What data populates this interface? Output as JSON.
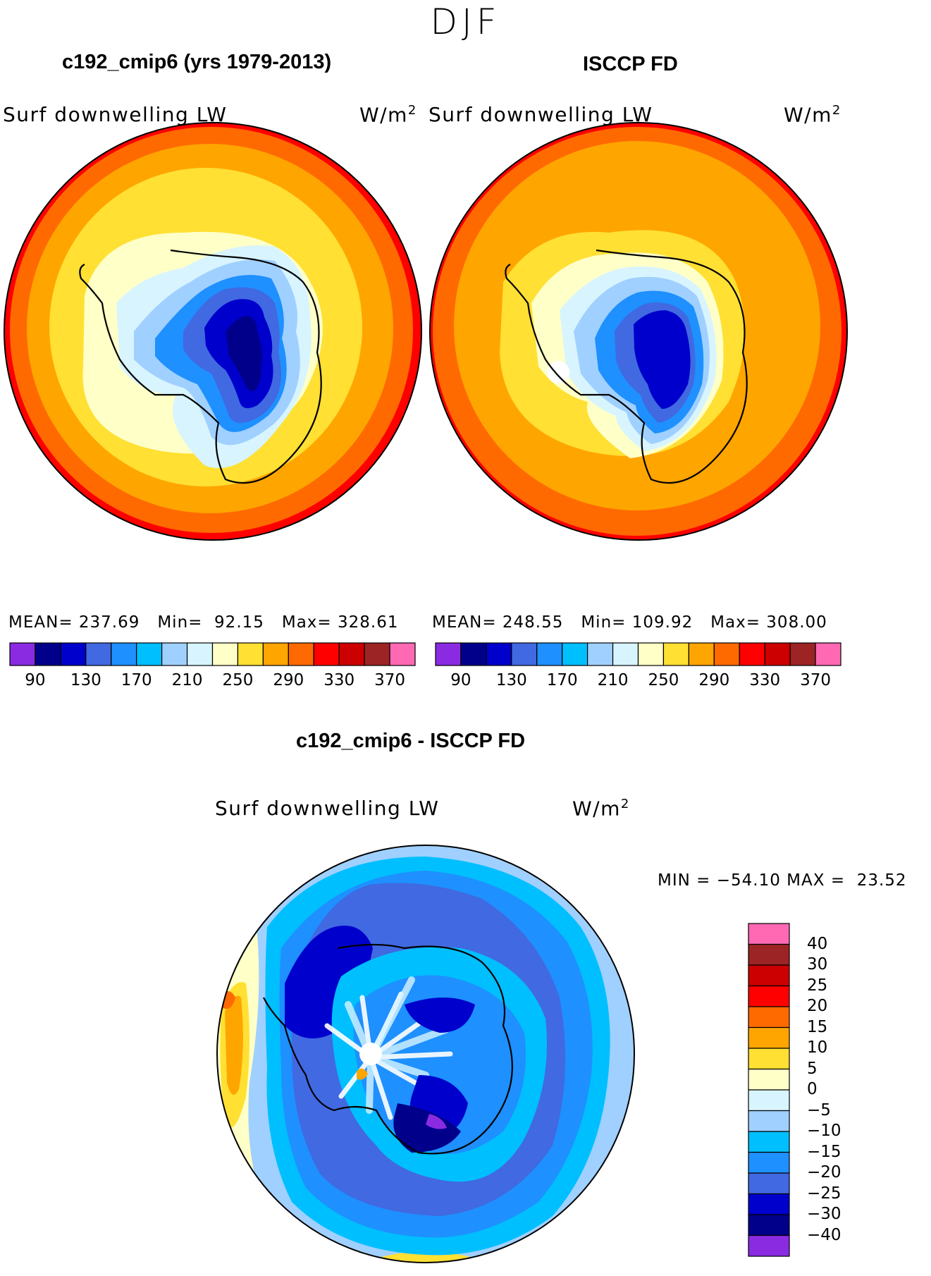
{
  "figure": {
    "season": "DJF"
  },
  "panels": [
    {
      "title": "c192_cmip6 (yrs 1979-2013)",
      "variable": "Surf downwelling LW",
      "units_base": "W/m",
      "units_exp": "2",
      "mean_label": "MEAN=",
      "mean": "237.69",
      "min_label": "Min=",
      "min": "92.15",
      "max_label": "Max=",
      "max": "328.61"
    },
    {
      "title": "ISCCP FD",
      "variable": "Surf downwelling LW",
      "units_base": "W/m",
      "units_exp": "2",
      "mean_label": "MEAN=",
      "mean": "248.55",
      "min_label": "Min=",
      "min": "109.92",
      "max_label": "Max=",
      "max": "308.00"
    }
  ],
  "diff": {
    "title": "c192_cmip6 - ISCCP FD",
    "variable": "Surf downwelling LW",
    "units_base": "W/m",
    "units_exp": "2",
    "min_label": "MIN =",
    "min": "−54.10",
    "max_label": "MAX =",
    "max": "23.52"
  },
  "chart_data": [
    {
      "type": "heatmap",
      "projection": "south polar stereographic",
      "title": "c192_cmip6 (yrs 1979-2013)",
      "variable": "Surf downwelling LW",
      "units": "W/m2",
      "colorbar": {
        "levels": [
          70,
          90,
          110,
          130,
          150,
          170,
          190,
          210,
          230,
          250,
          270,
          290,
          310,
          330,
          350,
          370,
          390
        ],
        "tick_labels": [
          "90",
          "130",
          "170",
          "210",
          "250",
          "290",
          "330",
          "370"
        ],
        "colors": [
          "#8a2be2",
          "#00008b",
          "#0000cd",
          "#4169e1",
          "#1e90ff",
          "#00bfff",
          "#a0d0ff",
          "#d8f4ff",
          "#ffffc8",
          "#ffe033",
          "#ffa500",
          "#ff6a00",
          "#ff0000",
          "#cc0000",
          "#9c2424",
          "#ff69b4"
        ]
      },
      "stats": {
        "mean": 237.69,
        "min": 92.15,
        "max": 328.61
      }
    },
    {
      "type": "heatmap",
      "projection": "south polar stereographic",
      "title": "ISCCP FD",
      "variable": "Surf downwelling LW",
      "units": "W/m2",
      "colorbar": {
        "levels": [
          70,
          90,
          110,
          130,
          150,
          170,
          190,
          210,
          230,
          250,
          270,
          290,
          310,
          330,
          350,
          370,
          390
        ],
        "tick_labels": [
          "90",
          "130",
          "170",
          "210",
          "250",
          "290",
          "330",
          "370"
        ],
        "colors": [
          "#8a2be2",
          "#00008b",
          "#0000cd",
          "#4169e1",
          "#1e90ff",
          "#00bfff",
          "#a0d0ff",
          "#d8f4ff",
          "#ffffc8",
          "#ffe033",
          "#ffa500",
          "#ff6a00",
          "#ff0000",
          "#cc0000",
          "#9c2424",
          "#ff69b4"
        ]
      },
      "stats": {
        "mean": 248.55,
        "min": 109.92,
        "max": 308.0
      }
    },
    {
      "type": "heatmap",
      "projection": "south polar stereographic",
      "title": "c192_cmip6 - ISCCP FD",
      "variable": "Surf downwelling LW",
      "units": "W/m2",
      "colorbar": {
        "tick_labels": [
          "40",
          "30",
          "25",
          "20",
          "15",
          "10",
          "5",
          "0",
          "−5",
          "−10",
          "−15",
          "−20",
          "−25",
          "−30",
          "−40"
        ],
        "colors": [
          "#ff69b4",
          "#9c2424",
          "#cc0000",
          "#ff0000",
          "#ff6a00",
          "#ffa500",
          "#ffe033",
          "#ffffc8",
          "#d8f4ff",
          "#a0d0ff",
          "#00bfff",
          "#1e90ff",
          "#4169e1",
          "#0000cd",
          "#00008b",
          "#8a2be2"
        ]
      },
      "stats": {
        "min": -54.1,
        "max": 23.52
      }
    }
  ]
}
